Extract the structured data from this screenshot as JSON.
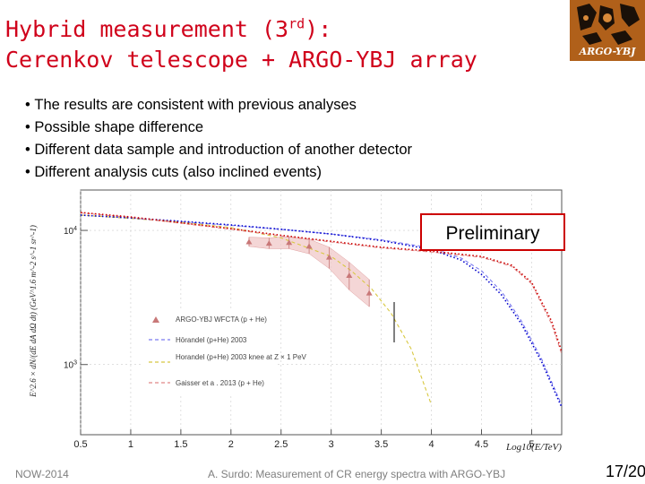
{
  "slide": {
    "title_line1_before": "Hybrid measurement (3",
    "title_sup": "rd",
    "title_line1_after": "):",
    "title_line2": "Cerenkov telescope + ARGO-YBJ array",
    "logo_text": "ARGO-YBJ",
    "bullets": [
      "The results are consistent with previous analyses",
      "Possible shape difference",
      "Different data sample and introduction of another detector",
      "Different analysis cuts (also inclined events)"
    ],
    "footer_left": "NOW-2014",
    "footer_center": "A. Surdo: Measurement of CR energy spectra with ARGO-YBJ",
    "page_current": "17",
    "page_sep": "/",
    "page_total": "20"
  },
  "chart_data": {
    "type": "line",
    "stamp": "Preliminary",
    "xlabel": "Log10(E/TeV)",
    "ylabel": "E^2.6 × dN/(dE dA dΩ dt) (GeV^1.6 m^-2 s^-1 sr^-1)",
    "y_scale": "log",
    "xlim": [
      0.5,
      5.3
    ],
    "ylim": [
      300,
      20000
    ],
    "x_ticks": [
      "0.5",
      "1",
      "1.5",
      "2",
      "2.5",
      "3",
      "3.5",
      "4",
      "4.5",
      "5"
    ],
    "x_tick_values": [
      0.5,
      1,
      1.5,
      2,
      2.5,
      3,
      3.5,
      4,
      4.5,
      5
    ],
    "y_ticks": [
      "10^3",
      "10^4"
    ],
    "y_tick_values": [
      1000,
      10000
    ],
    "legend_position": "bottom-left",
    "colors": {
      "data": "#c87878",
      "band": "#f0c8c8",
      "horandel_2003": "#7a7af0",
      "horandel_knee": "#d8c840",
      "gaisser": "#e08888",
      "blue_dotted": "#0000cc",
      "red_dotted": "#cc0000"
    },
    "series": [
      {
        "name": "ARGO-YBJ WFCTA (p + He)",
        "style": "markers",
        "x": [
          2.18,
          2.38,
          2.58,
          2.78,
          2.98,
          3.18,
          3.38
        ],
        "y": [
          8200,
          8000,
          8100,
          7600,
          6300,
          4600,
          3400
        ],
        "y_low": [
          7600,
          7300,
          7300,
          6700,
          5200,
          3600,
          2700
        ],
        "y_high": [
          8900,
          8800,
          9000,
          8600,
          7500,
          5800,
          4300
        ]
      },
      {
        "name": "Hörandel (p+He) 2003",
        "style": "dashed",
        "x": [
          0.5,
          1.0,
          1.5,
          2.0,
          2.5,
          3.0,
          3.5,
          4.0,
          4.3,
          4.5,
          4.7,
          4.9,
          5.1,
          5.3
        ],
        "y": [
          13000,
          12300,
          11600,
          10900,
          10200,
          9400,
          8500,
          7400,
          6200,
          5000,
          3500,
          2100,
          1100,
          500
        ]
      },
      {
        "name": "Horandel (p+He) 2003 knee at Z × 1 PeV",
        "style": "dashed",
        "x": [
          0.5,
          1.0,
          1.5,
          2.0,
          2.5,
          3.0,
          3.2,
          3.4,
          3.6,
          3.8,
          4.0
        ],
        "y": [
          13000,
          12300,
          11500,
          10500,
          8800,
          6400,
          5000,
          3700,
          2400,
          1300,
          500
        ]
      },
      {
        "name": "Gaisser et a . 2013 (p + He)",
        "style": "dashed",
        "x": [
          0.5,
          1.0,
          1.5,
          2.0,
          2.5,
          3.0,
          3.5,
          4.0,
          4.5,
          4.8,
          5.0,
          5.2,
          5.3
        ],
        "y": [
          13500,
          12500,
          11300,
          10200,
          9100,
          8200,
          7400,
          6900,
          6300,
          5400,
          4000,
          2000,
          1200
        ]
      },
      {
        "style": "dotted",
        "x": [
          0.5,
          1.0,
          1.5,
          2.0,
          2.5,
          3.0,
          3.5,
          4.0,
          4.3,
          4.5,
          4.7,
          4.9,
          5.1,
          5.3
        ],
        "y": [
          13000,
          12400,
          11700,
          11000,
          10200,
          9400,
          8400,
          7200,
          6000,
          4700,
          3300,
          2000,
          1050,
          480
        ]
      },
      {
        "style": "dotted",
        "x": [
          0.5,
          1.0,
          1.5,
          2.0,
          2.5,
          3.0,
          3.5,
          4.0,
          4.5,
          4.8,
          5.0,
          5.2,
          5.3
        ],
        "y": [
          13600,
          12600,
          11400,
          10300,
          9200,
          8300,
          7500,
          7000,
          6400,
          5500,
          4100,
          2100,
          1250
        ]
      }
    ]
  }
}
